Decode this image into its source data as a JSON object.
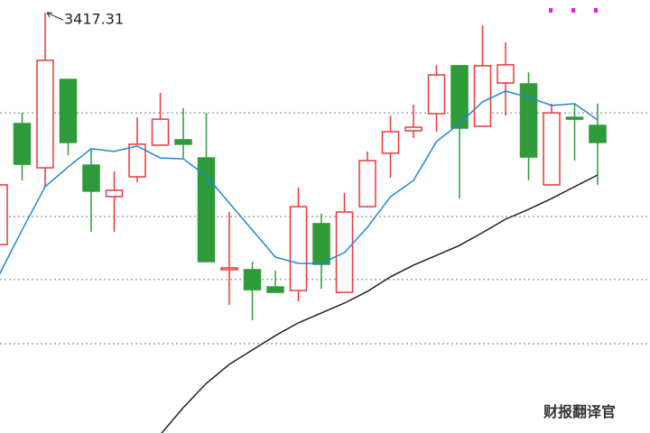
{
  "chart_data": {
    "type": "candlestick",
    "ylim": [
      3230,
      3423
    ],
    "gridlines": [
      3372.7,
      3326.5,
      3298.4,
      3269.8
    ],
    "up_color": "#e8393a",
    "down_color": "#2e9a3a",
    "series": {
      "open": [
        3314.0,
        3367.9,
        3348.2,
        3387.6,
        3349.4,
        3335.4,
        3344.2,
        3358.3,
        3360.7,
        3352.6,
        3302.8,
        3302.8,
        3295.1,
        3293.5,
        3323.3,
        3292.7,
        3330.9,
        3354.7,
        3364.7,
        3372.3,
        3393.7,
        3366.7,
        3386.0,
        3385.6,
        3340.6,
        3370.7,
        3367.1
      ],
      "high": [
        3340.6,
        3372.7,
        3417.31,
        3387.6,
        3356.7,
        3346.6,
        3370.7,
        3381.6,
        3374.8,
        3372.7,
        3328.5,
        3306.4,
        3302.4,
        3339.4,
        3327.7,
        3337.0,
        3355.5,
        3371.5,
        3376.4,
        3394.0,
        3393.7,
        3411.7,
        3404.1,
        3390.8,
        3376.8,
        3376.8,
        3376.8
      ],
      "low": [
        3314.0,
        3342.6,
        3339.4,
        3353.8,
        3319.7,
        3319.7,
        3341.8,
        3358.3,
        3352.6,
        3306.4,
        3287.1,
        3280.3,
        3292.7,
        3288.7,
        3294.3,
        3292.7,
        3330.9,
        3343.8,
        3361.5,
        3364.3,
        3334.5,
        3366.7,
        3371.5,
        3342.6,
        3340.6,
        3351.4,
        3340.6
      ],
      "close": [
        3340.6,
        3349.8,
        3396.1,
        3359.5,
        3337.8,
        3338.2,
        3358.7,
        3369.9,
        3358.7,
        3306.4,
        3303.6,
        3293.9,
        3292.7,
        3330.9,
        3305.2,
        3328.5,
        3351.4,
        3364.3,
        3366.3,
        3389.6,
        3365.9,
        3393.7,
        3394.1,
        3353.0,
        3372.7,
        3369.9,
        3359.5
      ]
    },
    "lines": [
      {
        "color": "#1e88d6",
        "values": [
          3300.4,
          3320.5,
          3339.8,
          3348.6,
          3356.7,
          3355.5,
          3357.9,
          3352.6,
          3352.2,
          3344.6,
          3332.5,
          3320.5,
          3308.4,
          3305.6,
          3305.6,
          3310.4,
          3321.7,
          3335.3,
          3342.6,
          3359.9,
          3367.9,
          3377.6,
          3382.4,
          3379.6,
          3376.0,
          3376.8,
          3369.5
        ]
      },
      {
        "color": "#222222",
        "values": [
          null,
          null,
          null,
          null,
          null,
          null,
          null,
          3229.2,
          3241.3,
          3252.1,
          3260.6,
          3267.0,
          3273.4,
          3279.1,
          3283.5,
          3287.9,
          3293.1,
          3299.6,
          3304.8,
          3309.2,
          3313.6,
          3319.3,
          3325.3,
          3329.7,
          3334.5,
          3339.8,
          3345.0
        ]
      }
    ],
    "annotation": {
      "index": 2,
      "value": 3417.31
    }
  },
  "watermark": "财报翻译官"
}
